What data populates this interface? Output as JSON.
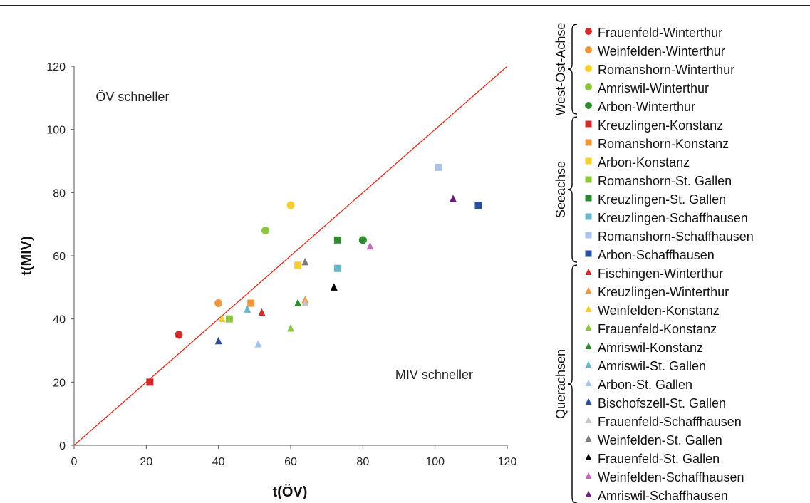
{
  "chart_data": {
    "type": "scatter",
    "title": "",
    "xlabel": "t(ÖV)",
    "ylabel": "t(MIV)",
    "xlim": [
      0,
      120
    ],
    "ylim": [
      0,
      120
    ],
    "xticks": [
      0,
      20,
      40,
      60,
      80,
      100,
      120
    ],
    "yticks": [
      0,
      20,
      40,
      60,
      80,
      100,
      120
    ],
    "grid": false,
    "legend_position": "right",
    "reference_line": {
      "x": [
        0,
        120
      ],
      "y": [
        0,
        120
      ],
      "color": "#e03020"
    },
    "annotations": [
      {
        "text": "ÖV schneller",
        "x": 6,
        "y": 109
      },
      {
        "text": "MIV schneller",
        "x": 89,
        "y": 21
      }
    ],
    "groups": [
      {
        "label": "West-Ost-Achse",
        "series": [
          0,
          1,
          2,
          3,
          4
        ]
      },
      {
        "label": "Seeachse",
        "series": [
          5,
          6,
          7,
          8,
          9,
          10,
          11,
          12
        ]
      },
      {
        "label": "Querachsen",
        "series": [
          13,
          14,
          15,
          16,
          17,
          18,
          19,
          20,
          21,
          22,
          23,
          24,
          25
        ]
      }
    ],
    "series": [
      {
        "name": "Frauenfeld-Winterthur",
        "marker": "circle",
        "color": "#d42a2a",
        "x": 29,
        "y": 35
      },
      {
        "name": "Weinfelden-Winterthur",
        "marker": "circle",
        "color": "#f0963c",
        "x": 40,
        "y": 45
      },
      {
        "name": "Romanshorn-Winterthur",
        "marker": "circle",
        "color": "#f4cf2d",
        "x": 60,
        "y": 76
      },
      {
        "name": "Amriswil-Winterthur",
        "marker": "circle",
        "color": "#8cc63f",
        "x": 53,
        "y": 68
      },
      {
        "name": "Arbon-Winterthur",
        "marker": "circle",
        "color": "#2f8a2f",
        "x": 80,
        "y": 65
      },
      {
        "name": "Kreuzlingen-Konstanz",
        "marker": "square",
        "color": "#d42a2a",
        "x": 21,
        "y": 20
      },
      {
        "name": "Romanshorn-Konstanz",
        "marker": "square",
        "color": "#f0963c",
        "x": 49,
        "y": 45
      },
      {
        "name": "Arbon-Konstanz",
        "marker": "square",
        "color": "#f4cf2d",
        "x": 62,
        "y": 57
      },
      {
        "name": "Romanshorn-St. Gallen",
        "marker": "square",
        "color": "#8cc63f",
        "x": 43,
        "y": 40
      },
      {
        "name": "Kreuzlingen-St. Gallen",
        "marker": "square",
        "color": "#2f8a2f",
        "x": 73,
        "y": 65
      },
      {
        "name": "Kreuzlingen-Schaffhausen",
        "marker": "square",
        "color": "#6ab6c8",
        "x": 73,
        "y": 56
      },
      {
        "name": "Romanshorn-Schaffhausen",
        "marker": "square",
        "color": "#a9c3ec",
        "x": 101,
        "y": 88
      },
      {
        "name": "Arbon-Schaffhausen",
        "marker": "square",
        "color": "#2a4f9c",
        "x": 112,
        "y": 76
      },
      {
        "name": "Fischingen-Winterthur",
        "marker": "triangle",
        "color": "#d42a2a",
        "x": 52,
        "y": 42
      },
      {
        "name": "Kreuzlingen-Winterthur",
        "marker": "triangle",
        "color": "#f0963c",
        "x": 64,
        "y": 46
      },
      {
        "name": "Weinfelden-Konstanz",
        "marker": "triangle",
        "color": "#f4cf2d",
        "x": 41,
        "y": 40
      },
      {
        "name": "Frauenfeld-Konstanz",
        "marker": "triangle",
        "color": "#8cc63f",
        "x": 60,
        "y": 37
      },
      {
        "name": "Amriswil-Konstanz",
        "marker": "triangle",
        "color": "#2f8a2f",
        "x": 62,
        "y": 45
      },
      {
        "name": "Amriswil-St. Gallen",
        "marker": "triangle",
        "color": "#6ab6c8",
        "x": 48,
        "y": 43
      },
      {
        "name": "Arbon-St. Gallen",
        "marker": "triangle",
        "color": "#a9c3ec",
        "x": 51,
        "y": 32
      },
      {
        "name": "Bischofszell-St. Gallen",
        "marker": "triangle",
        "color": "#2a4f9c",
        "x": 40,
        "y": 33
      },
      {
        "name": "Frauenfeld-Schaffhausen",
        "marker": "triangle",
        "color": "#c4c4c4",
        "x": 64,
        "y": 45
      },
      {
        "name": "Weinfelden-St. Gallen",
        "marker": "triangle",
        "color": "#7d7d7d",
        "x": 64,
        "y": 58
      },
      {
        "name": "Frauenfeld-St. Gallen",
        "marker": "triangle",
        "color": "#000000",
        "x": 72,
        "y": 50
      },
      {
        "name": "Weinfelden-Schaffhausen",
        "marker": "triangle",
        "color": "#c069b6",
        "x": 82,
        "y": 63
      },
      {
        "name": "Amriswil-Schaffhausen",
        "marker": "triangle",
        "color": "#6b1f7c",
        "x": 105,
        "y": 78
      }
    ]
  }
}
